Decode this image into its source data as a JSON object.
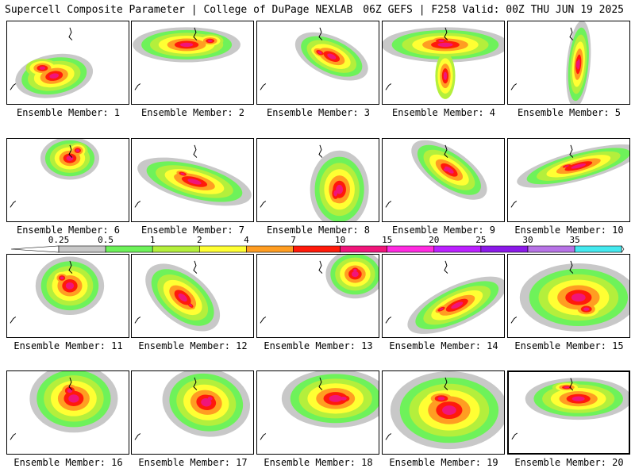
{
  "header": {
    "left": "Supercell Composite Parameter | College of DuPage NEXLAB",
    "right": "06Z GEFS | F258 Valid: 00Z THU JUN 19 2025"
  },
  "panel_label_prefix": "Ensemble Member: ",
  "members": [
    1,
    2,
    3,
    4,
    5,
    6,
    7,
    8,
    9,
    10,
    11,
    12,
    13,
    14,
    15,
    16,
    17,
    18,
    19,
    20
  ],
  "selected_member": 20,
  "colorbar": {
    "labels": [
      "0.25",
      "0.5",
      "1",
      "2",
      "4",
      "7",
      "10",
      "15",
      "20",
      "25",
      "30",
      "35"
    ],
    "colors": [
      "#ffffff",
      "#c8c8c8",
      "#6ef25a",
      "#b4ef3c",
      "#ffff33",
      "#ff9d22",
      "#ff1a0a",
      "#f0157a",
      "#ff2be0",
      "#bb21ff",
      "#8b19e8",
      "#b773e6",
      "#44e9ef",
      "#ffffff"
    ]
  },
  "legend_colors": {
    "gray": "#c8c8c8",
    "green": "#6ef25a",
    "lightgreen": "#b4ef3c",
    "yellow": "#ffff33",
    "orange": "#ff9d22",
    "red": "#ff1a0a",
    "magenta": "#f0157a"
  }
}
